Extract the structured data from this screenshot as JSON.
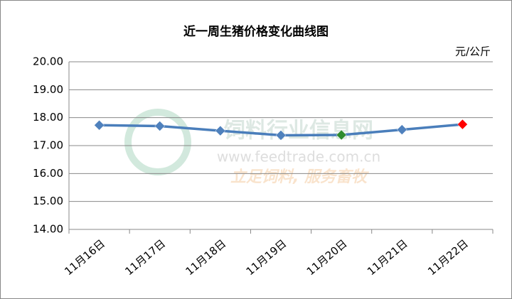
{
  "chart_data": {
    "type": "line",
    "title": "近一周生猪价格变化曲线图",
    "unit_label": "元/公斤",
    "categories": [
      "11月16日",
      "11月17日",
      "11月18日",
      "11月19日",
      "11月20日",
      "11月21日",
      "11月22日"
    ],
    "series": [
      {
        "color": "#4a7ebb",
        "values": [
          17.73,
          17.7,
          17.53,
          17.37,
          17.38,
          17.57,
          17.76
        ],
        "marker_colors": [
          "#4f81bd",
          "#4f81bd",
          "#4f81bd",
          "#4f81bd",
          "#2e8b2e",
          "#4f81bd",
          "#ff0000"
        ]
      }
    ],
    "ylim": [
      14,
      20
    ],
    "yticks": [
      {
        "value": 14,
        "label": "14.00"
      },
      {
        "value": 15,
        "label": "15.00"
      },
      {
        "value": 16,
        "label": "16.00"
      },
      {
        "value": 17,
        "label": "17.00"
      },
      {
        "value": 18,
        "label": "18.00"
      },
      {
        "value": 19,
        "label": "19.00"
      },
      {
        "value": 20,
        "label": "20.00"
      }
    ],
    "grid": true,
    "watermark": [
      "饲料行业信息网",
      "www.feedtrade.com.cn",
      "立足饲料,  服务畜牧"
    ]
  }
}
